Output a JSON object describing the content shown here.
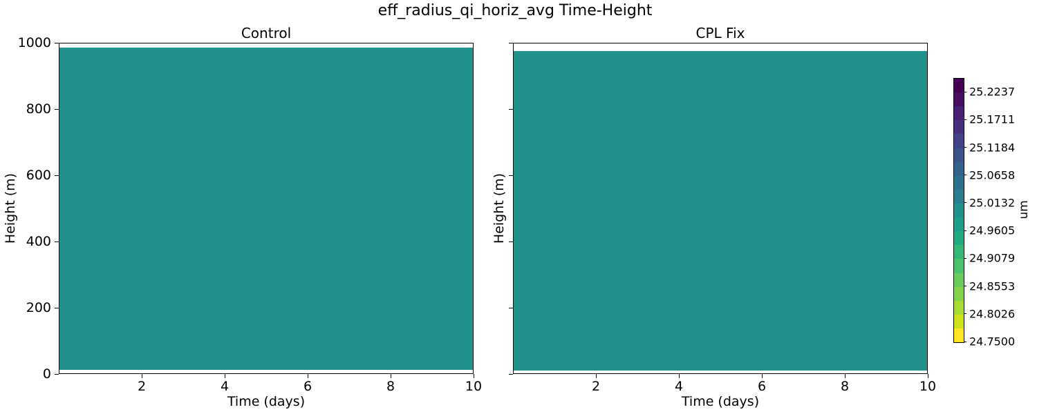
{
  "figure": {
    "suptitle": "eff_radius_qi_horiz_avg Time-Height",
    "background": "#ffffff"
  },
  "panels": [
    {
      "title": "Control",
      "xlabel": "Time (days)",
      "ylabel": "Height (m)",
      "x_tick_labels": [
        "2",
        "4",
        "6",
        "8",
        "10"
      ],
      "y_tick_labels": [
        "1000",
        "800",
        "600",
        "400",
        "200",
        "0"
      ],
      "y_tick_labels_visible": true
    },
    {
      "title": "CPL Fix",
      "xlabel": "Time (days)",
      "ylabel": "Height (m)",
      "x_tick_labels": [
        "2",
        "4",
        "6",
        "8",
        "10"
      ],
      "y_tick_labels": [
        "1000",
        "800",
        "600",
        "400",
        "200",
        "0"
      ],
      "y_tick_labels_visible": false
    }
  ],
  "colorbar": {
    "label": "um",
    "tick_labels": [
      "25.2237",
      "25.1711",
      "25.1184",
      "25.0658",
      "25.0132",
      "24.9605",
      "24.9079",
      "24.8553",
      "24.8026",
      "24.7500"
    ],
    "value_range": [
      24.75,
      25.25
    ],
    "band_colors": [
      "#440154",
      "#470d60",
      "#482173",
      "#46307e",
      "#414287",
      "#3a538b",
      "#33628d",
      "#2d708e",
      "#287d8e",
      "#21918c",
      "#1e9d89",
      "#24aa83",
      "#35b779",
      "#4cc26c",
      "#67cc5c",
      "#84d44b",
      "#a8db34",
      "#cfe11c",
      "#fde725"
    ]
  },
  "chart_data": {
    "type": "heatmap",
    "title": "eff_radius_qi_horiz_avg Time-Height",
    "panels": [
      {
        "title": "Control",
        "xlabel": "Time (days)",
        "ylabel": "Height (m)",
        "xlim": [
          0,
          10
        ],
        "ylim": [
          0,
          1000
        ],
        "x_ticks": [
          2,
          4,
          6,
          8,
          10
        ],
        "y_ticks": [
          0,
          200,
          400,
          600,
          800,
          1000
        ],
        "uniform_value_um": 25.0,
        "data_extent_m": [
          10,
          988
        ]
      },
      {
        "title": "CPL Fix",
        "xlabel": "Time (days)",
        "ylabel": "Height (m)",
        "xlim": [
          0,
          10
        ],
        "ylim": [
          0,
          1000
        ],
        "x_ticks": [
          2,
          4,
          6,
          8,
          10
        ],
        "y_ticks": [
          0,
          200,
          400,
          600,
          800,
          1000
        ],
        "uniform_value_um": 25.0,
        "data_extent_m": [
          8,
          977
        ]
      }
    ],
    "colorbar": {
      "label": "um",
      "tick_values": [
        25.2237,
        25.1711,
        25.1184,
        25.0658,
        25.0132,
        24.9605,
        24.9079,
        24.8553,
        24.8026,
        24.75
      ],
      "range": [
        24.75,
        25.25
      ],
      "colormap": "viridis reversed, 19 discrete bands",
      "position": "right"
    },
    "uniform_fill_color": "#21918c",
    "grid": false,
    "note": "Field is visually uniform (~25.0 um) across 0-10 days and 0-1000 m in both panels."
  }
}
